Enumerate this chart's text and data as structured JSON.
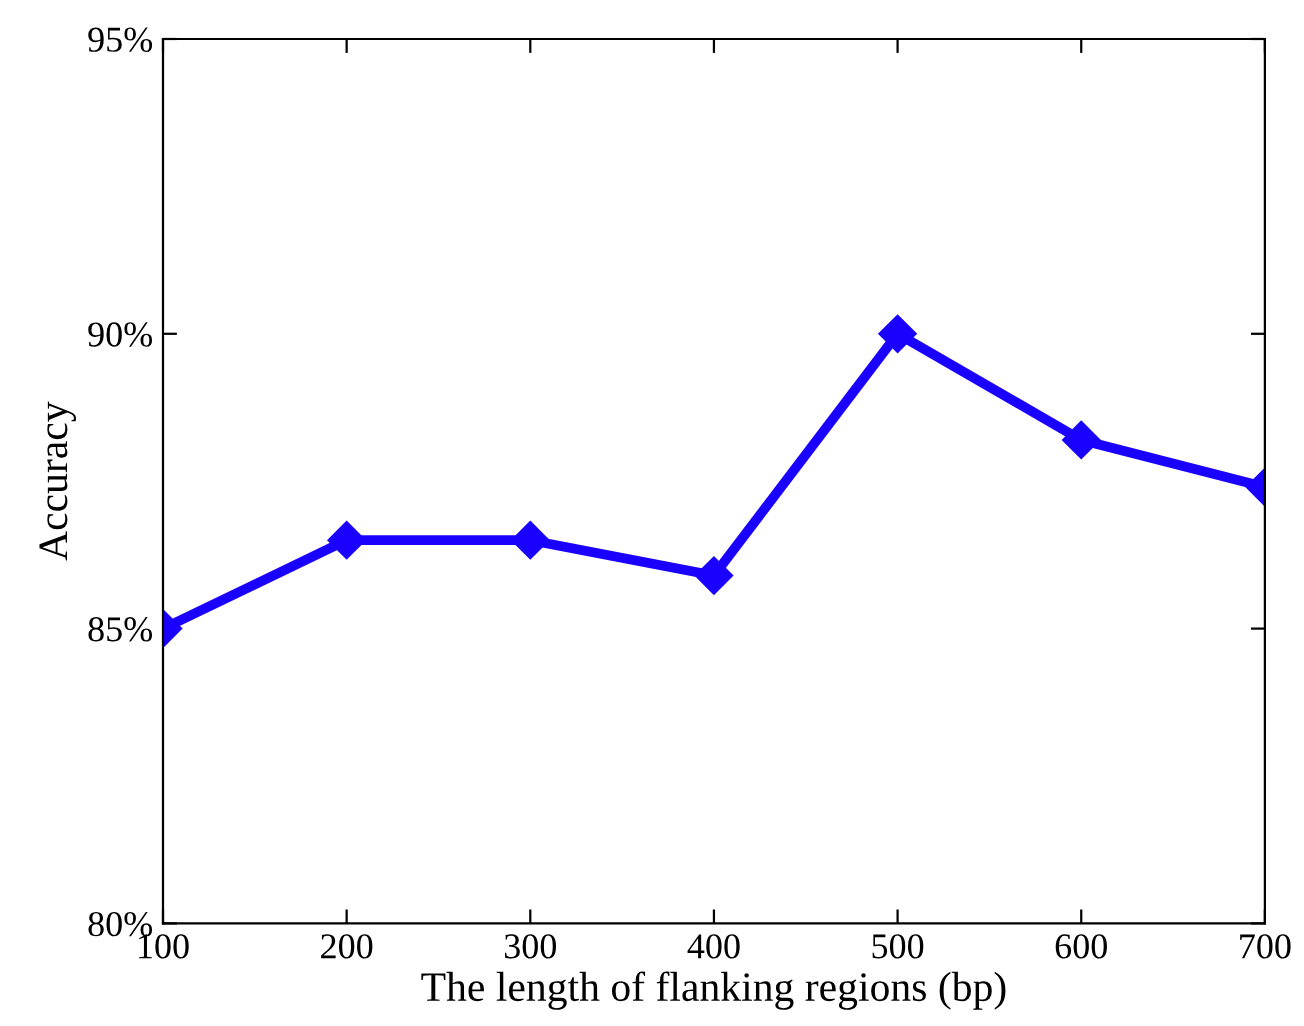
{
  "chart_data": {
    "type": "line",
    "xlabel": "The length of flanking regions (bp)",
    "ylabel": "Accuracy",
    "x": [
      100,
      200,
      300,
      400,
      500,
      600,
      700
    ],
    "series": [
      {
        "color": "#1a00ff",
        "values": [
          85.0,
          86.5,
          86.5,
          85.9,
          90.0,
          88.2,
          87.4
        ]
      }
    ],
    "xlim": [
      100,
      700
    ],
    "xticks": [
      100,
      200,
      300,
      400,
      500,
      600,
      700
    ],
    "ylim": [
      80,
      95
    ],
    "yticks": [
      {
        "value": 80,
        "label": "80%"
      },
      {
        "value": 85,
        "label": "85%"
      },
      {
        "value": 90,
        "label": "90%"
      },
      {
        "value": 95,
        "label": "95%"
      }
    ],
    "marker": "diamond",
    "line_style": "solid",
    "grid": false,
    "legend": false
  }
}
